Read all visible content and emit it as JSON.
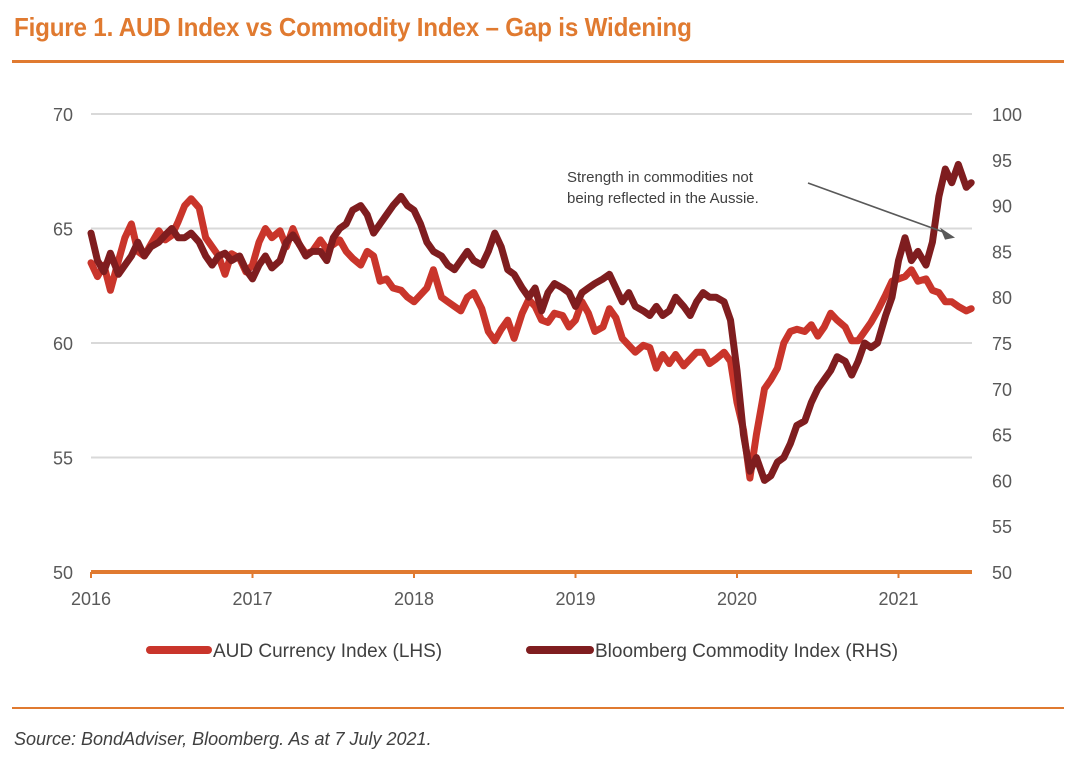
{
  "title": "Figure 1. AUD Index vs Commodity Index – Gap is Widening",
  "source": "Source: BondAdviser, Bloomberg. As at 7 July 2021.",
  "colors": {
    "accent": "#e07a30",
    "aud": "#c9352b",
    "commodity": "#7f1d1f",
    "grid": "#d9d9d9",
    "annotation_arrow": "#595959"
  },
  "chart_data": {
    "type": "line",
    "title": "Figure 1. AUD Index vs Commodity Index – Gap is Widening",
    "xlabel": "",
    "ylabel_left": "AUD Currency Index",
    "ylabel_right": "Bloomberg Commodity Index",
    "x_ticks": [
      "2016",
      "2017",
      "2018",
      "2019",
      "2020",
      "2021"
    ],
    "x_range": [
      2016.0,
      2021.45
    ],
    "ylim_left": [
      50,
      70
    ],
    "yticks_left": [
      "50",
      "55",
      "60",
      "65",
      "70"
    ],
    "ylim_right": [
      50,
      100
    ],
    "yticks_right": [
      "50",
      "55",
      "60",
      "65",
      "70",
      "75",
      "80",
      "85",
      "90",
      "95",
      "100"
    ],
    "grid": true,
    "legend_position": "bottom-center",
    "annotation": {
      "lines": [
        "Strength in commodities not",
        "being reflected in the Aussie."
      ],
      "arrow_target": {
        "x": 2021.35,
        "y_right": 86.5
      }
    },
    "series": [
      {
        "name": "AUD Currency Index (LHS)",
        "axis": "left",
        "x": [
          2016.0,
          2016.04,
          2016.08,
          2016.12,
          2016.17,
          2016.21,
          2016.25,
          2016.29,
          2016.33,
          2016.37,
          2016.42,
          2016.46,
          2016.5,
          2016.54,
          2016.58,
          2016.62,
          2016.67,
          2016.71,
          2016.75,
          2016.79,
          2016.83,
          2016.87,
          2016.92,
          2016.96,
          2017.0,
          2017.04,
          2017.08,
          2017.12,
          2017.17,
          2017.21,
          2017.25,
          2017.29,
          2017.33,
          2017.37,
          2017.42,
          2017.46,
          2017.5,
          2017.54,
          2017.58,
          2017.62,
          2017.67,
          2017.71,
          2017.75,
          2017.79,
          2017.83,
          2017.87,
          2017.92,
          2017.96,
          2018.0,
          2018.04,
          2018.08,
          2018.12,
          2018.17,
          2018.21,
          2018.25,
          2018.29,
          2018.33,
          2018.37,
          2018.42,
          2018.46,
          2018.5,
          2018.54,
          2018.58,
          2018.62,
          2018.67,
          2018.71,
          2018.75,
          2018.79,
          2018.83,
          2018.87,
          2018.92,
          2018.96,
          2019.0,
          2019.04,
          2019.08,
          2019.12,
          2019.17,
          2019.21,
          2019.25,
          2019.29,
          2019.33,
          2019.37,
          2019.42,
          2019.46,
          2019.5,
          2019.54,
          2019.58,
          2019.62,
          2019.67,
          2019.71,
          2019.75,
          2019.79,
          2019.83,
          2019.87,
          2019.92,
          2019.96,
          2020.0,
          2020.04,
          2020.08,
          2020.12,
          2020.17,
          2020.21,
          2020.25,
          2020.29,
          2020.33,
          2020.37,
          2020.42,
          2020.46,
          2020.5,
          2020.54,
          2020.58,
          2020.62,
          2020.67,
          2020.71,
          2020.75,
          2020.79,
          2020.83,
          2020.87,
          2020.92,
          2020.96,
          2021.0,
          2021.04,
          2021.08,
          2021.12,
          2021.17,
          2021.21,
          2021.25,
          2021.29,
          2021.33,
          2021.37,
          2021.42,
          2021.45
        ],
        "values": [
          63.5,
          62.9,
          63.4,
          62.3,
          63.6,
          64.6,
          65.2,
          64.0,
          63.8,
          64.3,
          64.9,
          64.5,
          64.7,
          65.3,
          66.0,
          66.3,
          65.9,
          64.6,
          64.2,
          63.8,
          63.0,
          63.9,
          63.7,
          63.1,
          63.4,
          64.4,
          65.0,
          64.6,
          64.9,
          64.2,
          65.0,
          64.3,
          63.9,
          64.0,
          64.5,
          64.1,
          64.3,
          64.5,
          64.0,
          63.7,
          63.4,
          64.0,
          63.8,
          62.7,
          62.8,
          62.4,
          62.3,
          62.0,
          61.8,
          62.1,
          62.4,
          63.2,
          62.0,
          61.8,
          61.6,
          61.4,
          62.0,
          62.2,
          61.5,
          60.5,
          60.1,
          60.6,
          61.0,
          60.2,
          61.3,
          61.9,
          61.6,
          61.0,
          60.9,
          61.3,
          61.2,
          60.7,
          61.0,
          61.8,
          61.3,
          60.5,
          60.7,
          61.5,
          61.1,
          60.2,
          59.9,
          59.6,
          59.9,
          59.8,
          58.9,
          59.5,
          59.1,
          59.5,
          59.0,
          59.3,
          59.6,
          59.6,
          59.1,
          59.3,
          59.6,
          59.2,
          57.4,
          56.2,
          54.1,
          56.0,
          58.0,
          58.4,
          58.9,
          60.0,
          60.5,
          60.6,
          60.5,
          60.8,
          60.3,
          60.7,
          61.3,
          61.0,
          60.7,
          60.1,
          60.1,
          60.5,
          60.9,
          61.4,
          62.1,
          62.7,
          62.8,
          62.9,
          63.2,
          62.7,
          62.8,
          62.3,
          62.2,
          61.8,
          61.8,
          61.6,
          61.4,
          61.5
        ]
      },
      {
        "name": "Bloomberg Commodity Index (RHS)",
        "axis": "right",
        "x": [
          2016.0,
          2016.04,
          2016.08,
          2016.12,
          2016.17,
          2016.21,
          2016.25,
          2016.29,
          2016.33,
          2016.37,
          2016.42,
          2016.46,
          2016.5,
          2016.54,
          2016.58,
          2016.62,
          2016.67,
          2016.71,
          2016.75,
          2016.79,
          2016.83,
          2016.87,
          2016.92,
          2016.96,
          2017.0,
          2017.04,
          2017.08,
          2017.12,
          2017.17,
          2017.21,
          2017.25,
          2017.29,
          2017.33,
          2017.37,
          2017.42,
          2017.46,
          2017.5,
          2017.54,
          2017.58,
          2017.62,
          2017.67,
          2017.71,
          2017.75,
          2017.79,
          2017.83,
          2017.87,
          2017.92,
          2017.96,
          2018.0,
          2018.04,
          2018.08,
          2018.12,
          2018.17,
          2018.21,
          2018.25,
          2018.29,
          2018.33,
          2018.37,
          2018.42,
          2018.46,
          2018.5,
          2018.54,
          2018.58,
          2018.62,
          2018.67,
          2018.71,
          2018.75,
          2018.79,
          2018.83,
          2018.87,
          2018.92,
          2018.96,
          2019.0,
          2019.04,
          2019.08,
          2019.12,
          2019.17,
          2019.21,
          2019.25,
          2019.29,
          2019.33,
          2019.37,
          2019.42,
          2019.46,
          2019.5,
          2019.54,
          2019.58,
          2019.62,
          2019.67,
          2019.71,
          2019.75,
          2019.79,
          2019.83,
          2019.87,
          2019.92,
          2019.96,
          2020.0,
          2020.04,
          2020.08,
          2020.12,
          2020.17,
          2020.21,
          2020.25,
          2020.29,
          2020.33,
          2020.37,
          2020.42,
          2020.46,
          2020.5,
          2020.54,
          2020.58,
          2020.62,
          2020.67,
          2020.71,
          2020.75,
          2020.79,
          2020.83,
          2020.87,
          2020.92,
          2020.96,
          2021.0,
          2021.04,
          2021.08,
          2021.12,
          2021.17,
          2021.21,
          2021.25,
          2021.29,
          2021.33,
          2021.37,
          2021.42,
          2021.45
        ],
        "values": [
          87.0,
          84.0,
          82.8,
          84.8,
          82.5,
          83.5,
          84.5,
          86.0,
          84.5,
          85.5,
          86.0,
          86.8,
          87.5,
          86.5,
          86.5,
          87.0,
          86.0,
          84.5,
          83.5,
          84.5,
          84.8,
          84.0,
          84.5,
          83.0,
          82.0,
          83.5,
          84.5,
          83.2,
          84.0,
          86.0,
          86.8,
          85.8,
          84.5,
          85.0,
          85.0,
          84.0,
          86.5,
          87.5,
          88.0,
          89.5,
          90.0,
          89.0,
          87.0,
          88.0,
          89.0,
          90.0,
          91.0,
          90.0,
          89.5,
          88.0,
          86.0,
          85.0,
          84.5,
          83.5,
          83.0,
          84.0,
          85.0,
          84.0,
          83.5,
          85.0,
          87.0,
          85.5,
          83.0,
          82.5,
          81.0,
          80.0,
          81.0,
          78.5,
          80.5,
          81.5,
          81.0,
          80.5,
          79.0,
          80.5,
          81.0,
          81.5,
          82.0,
          82.5,
          81.0,
          79.5,
          80.5,
          79.0,
          78.5,
          78.0,
          79.0,
          78.0,
          78.5,
          80.0,
          79.0,
          78.0,
          79.5,
          80.5,
          80.0,
          80.0,
          79.5,
          77.5,
          72.0,
          65.0,
          61.0,
          62.5,
          60.0,
          60.5,
          62.0,
          62.5,
          64.0,
          66.0,
          66.5,
          68.5,
          70.0,
          71.0,
          72.0,
          73.5,
          73.0,
          71.5,
          73.0,
          75.0,
          74.5,
          75.0,
          78.0,
          80.0,
          84.0,
          86.5,
          84.0,
          85.0,
          83.5,
          86.0,
          91.0,
          94.0,
          92.5,
          94.5,
          92.0,
          92.5
        ]
      }
    ]
  },
  "legend": [
    {
      "label": "AUD Currency Index (LHS)"
    },
    {
      "label": "Bloomberg Commodity Index (RHS)"
    }
  ]
}
